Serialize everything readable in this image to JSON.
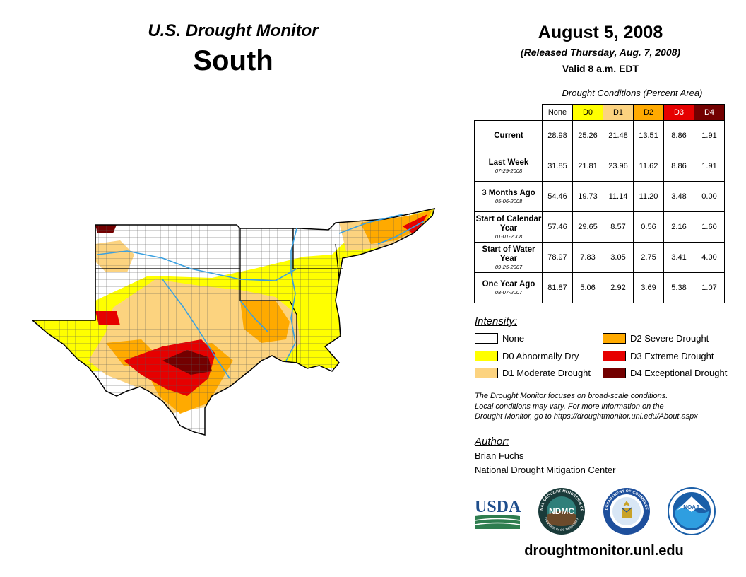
{
  "header": {
    "title": "U.S. Drought Monitor",
    "region": "South",
    "date": "August 5, 2008",
    "released": "(Released Thursday, Aug. 7, 2008)",
    "valid": "Valid 8 a.m. EDT"
  },
  "table": {
    "caption": "Drought Conditions (Percent Area)",
    "columns": [
      {
        "label": "None",
        "color": "#ffffff",
        "text_color": "#000000"
      },
      {
        "label": "D0",
        "color": "#ffff00",
        "text_color": "#000000"
      },
      {
        "label": "D1",
        "color": "#fcd37f",
        "text_color": "#000000"
      },
      {
        "label": "D2",
        "color": "#ffaa00",
        "text_color": "#000000"
      },
      {
        "label": "D3",
        "color": "#e60000",
        "text_color": "#ffffff"
      },
      {
        "label": "D4",
        "color": "#730000",
        "text_color": "#ffffff"
      }
    ],
    "rows": [
      {
        "label": "Current",
        "date": "",
        "values": [
          "28.98",
          "25.26",
          "21.48",
          "13.51",
          "8.86",
          "1.91"
        ]
      },
      {
        "label": "Last Week",
        "date": "07-29-2008",
        "values": [
          "31.85",
          "21.81",
          "23.96",
          "11.62",
          "8.86",
          "1.91"
        ]
      },
      {
        "label": "3 Months Ago",
        "date": "05-06-2008",
        "values": [
          "54.46",
          "19.73",
          "11.14",
          "11.20",
          "3.48",
          "0.00"
        ]
      },
      {
        "label": "Start of Calendar Year",
        "date": "01-01-2008",
        "values": [
          "57.46",
          "29.65",
          "8.57",
          "0.56",
          "2.16",
          "1.60"
        ]
      },
      {
        "label": "Start of Water Year",
        "date": "09-25-2007",
        "values": [
          "78.97",
          "7.83",
          "3.05",
          "2.75",
          "3.41",
          "4.00"
        ]
      },
      {
        "label": "One Year Ago",
        "date": "08-07-2007",
        "values": [
          "81.87",
          "5.06",
          "2.92",
          "3.69",
          "5.38",
          "1.07"
        ]
      }
    ]
  },
  "legend": {
    "title": "Intensity:",
    "items": [
      {
        "label": "None",
        "color": "#ffffff"
      },
      {
        "label": "D0 Abnormally Dry",
        "color": "#ffff00"
      },
      {
        "label": "D1 Moderate Drought",
        "color": "#fcd37f"
      },
      {
        "label": "D2 Severe Drought",
        "color": "#ffaa00"
      },
      {
        "label": "D3 Extreme Drought",
        "color": "#e60000"
      },
      {
        "label": "D4 Exceptional Drought",
        "color": "#730000"
      }
    ]
  },
  "note": {
    "line1": "The Drought Monitor focuses on broad-scale conditions.",
    "line2": "Local conditions may vary. For more information on the",
    "line3": "Drought Monitor, go to https://droughtmonitor.unl.edu/About.aspx"
  },
  "author": {
    "label": "Author:",
    "name": "Brian Fuchs",
    "org": "National Drought Mitigation Center"
  },
  "logos": {
    "usda": "USDA",
    "ndmc": "NDMC",
    "noaa": "NOAA",
    "ndmc_ring": "NATIONAL DROUGHT MITIGATION CENTER",
    "ndmc_ring_bottom": "UNIVERSITY OF NEBRASKA",
    "doc_ring": "DEPARTMENT OF COMMERCE"
  },
  "footer": {
    "url": "droughtmonitor.unl.edu"
  }
}
